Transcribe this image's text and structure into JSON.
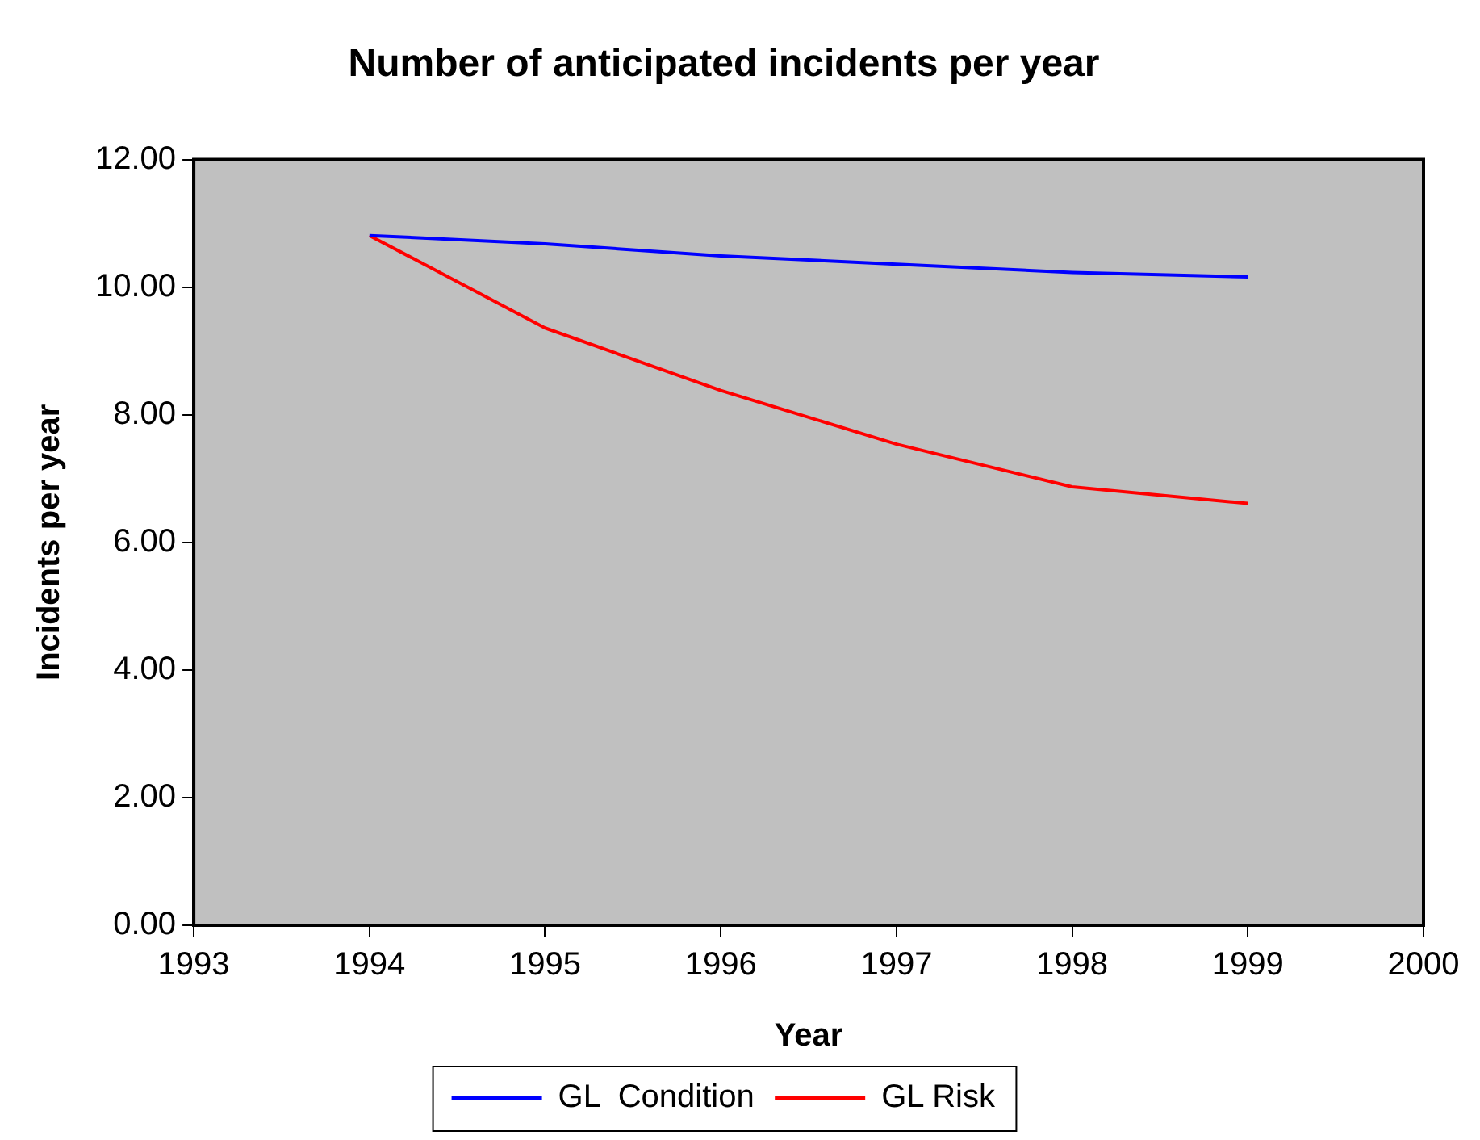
{
  "chart_data": {
    "type": "line",
    "title": "Number of anticipated incidents per year",
    "xlabel": "Year",
    "ylabel": "Incidents per year",
    "x": [
      1994,
      1995,
      1996,
      1997,
      1998,
      1999
    ],
    "series": [
      {
        "name": "GL  Condition",
        "color": "#0000ff",
        "values": [
          10.81,
          10.68,
          10.49,
          10.36,
          10.23,
          10.16
        ]
      },
      {
        "name": "GL Risk",
        "color": "#ff0000",
        "values": [
          10.81,
          9.36,
          8.38,
          7.54,
          6.87,
          6.61
        ]
      }
    ],
    "xlim": [
      1993,
      2000
    ],
    "xticks": [
      1993,
      1994,
      1995,
      1996,
      1997,
      1998,
      1999,
      2000
    ],
    "ylim": [
      0,
      12
    ],
    "yticks": [
      {
        "value": 0,
        "label": "0.00"
      },
      {
        "value": 2,
        "label": "2.00"
      },
      {
        "value": 4,
        "label": "4.00"
      },
      {
        "value": 6,
        "label": "6.00"
      },
      {
        "value": 8,
        "label": "8.00"
      },
      {
        "value": 10,
        "label": "10.00"
      },
      {
        "value": 12,
        "label": "12.00"
      }
    ],
    "grid": false,
    "legend": "bottom",
    "marker": "none",
    "line_style": "solid"
  }
}
